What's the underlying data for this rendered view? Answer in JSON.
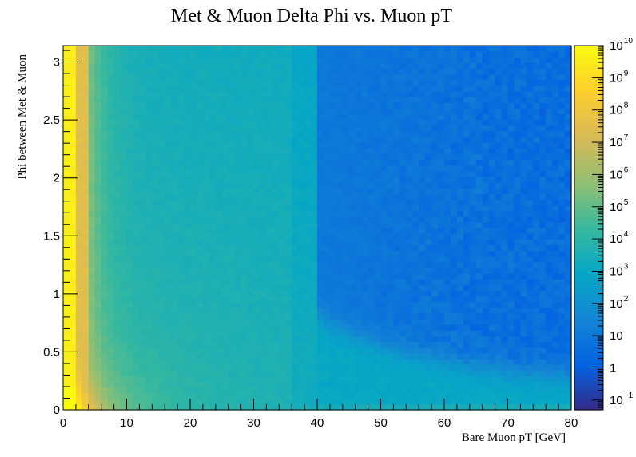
{
  "chart_data": {
    "type": "heatmap",
    "title": "Met & Muon Delta Phi vs. Muon pT",
    "xlabel": "Bare Muon pT [GeV]",
    "ylabel": "Phi between Met & Muon",
    "xlim": [
      0,
      80
    ],
    "ylim": [
      0,
      3.1416
    ],
    "x_ticks": [
      "0",
      "10",
      "20",
      "30",
      "40",
      "50",
      "60",
      "70",
      "80"
    ],
    "y_ticks": [
      "0",
      "0.5",
      "1",
      "1.5",
      "2",
      "2.5",
      "3"
    ],
    "bins": {
      "x": 80,
      "y": 64
    },
    "z_scale": "log",
    "z_range": [
      0.05,
      10000000000
    ],
    "colorbar_labels": [
      {
        "base": "10",
        "exp": "−1",
        "value": 0.1
      },
      {
        "base": "1",
        "exp": "",
        "value": 1
      },
      {
        "base": "10",
        "exp": "",
        "value": 10
      },
      {
        "base": "10",
        "exp": "2",
        "value": 100
      },
      {
        "base": "10",
        "exp": "3",
        "value": 1000
      },
      {
        "base": "10",
        "exp": "4",
        "value": 10000
      },
      {
        "base": "10",
        "exp": "5",
        "value": 100000
      },
      {
        "base": "10",
        "exp": "6",
        "value": 1000000
      },
      {
        "base": "10",
        "exp": "7",
        "value": 10000000
      },
      {
        "base": "10",
        "exp": "8",
        "value": 100000000
      },
      {
        "base": "10",
        "exp": "9",
        "value": 1000000000
      },
      {
        "base": "10",
        "exp": "10",
        "value": 10000000000
      }
    ],
    "palette": [
      "#352a87",
      "#0363e1",
      "#1485d4",
      "#06a7c6",
      "#38b99e",
      "#92bf73",
      "#d9ba56",
      "#fcce2e",
      "#f9fb0e"
    ],
    "density_regions": [
      {
        "x_range": [
          0,
          2
        ],
        "y_range": [
          0,
          0.2
        ],
        "approx_count": 10000000000
      },
      {
        "x_range": [
          0,
          2
        ],
        "y_range": [
          0.2,
          3.1416
        ],
        "approx_count": 3000000000
      },
      {
        "x_range": [
          2,
          5
        ],
        "y_range": [
          0,
          3.1416
        ],
        "approx_count": 10000000
      },
      {
        "x_range": [
          5,
          10
        ],
        "y_range": [
          1,
          3.1416
        ],
        "approx_count": 10000
      },
      {
        "x_range": [
          10,
          40
        ],
        "y_range": [
          0.3,
          3.1416
        ],
        "approx_count": 3000
      },
      {
        "x_range": [
          40,
          80
        ],
        "y_range": [
          0.6,
          3.1416
        ],
        "approx_count": 8
      },
      {
        "x_range": [
          40,
          80
        ],
        "y_range": [
          0.05,
          0.5
        ],
        "approx_count": 1000
      },
      {
        "x_range": [
          0,
          80
        ],
        "y_range": [
          0,
          0.05
        ],
        "approx_count": 2000
      }
    ]
  }
}
